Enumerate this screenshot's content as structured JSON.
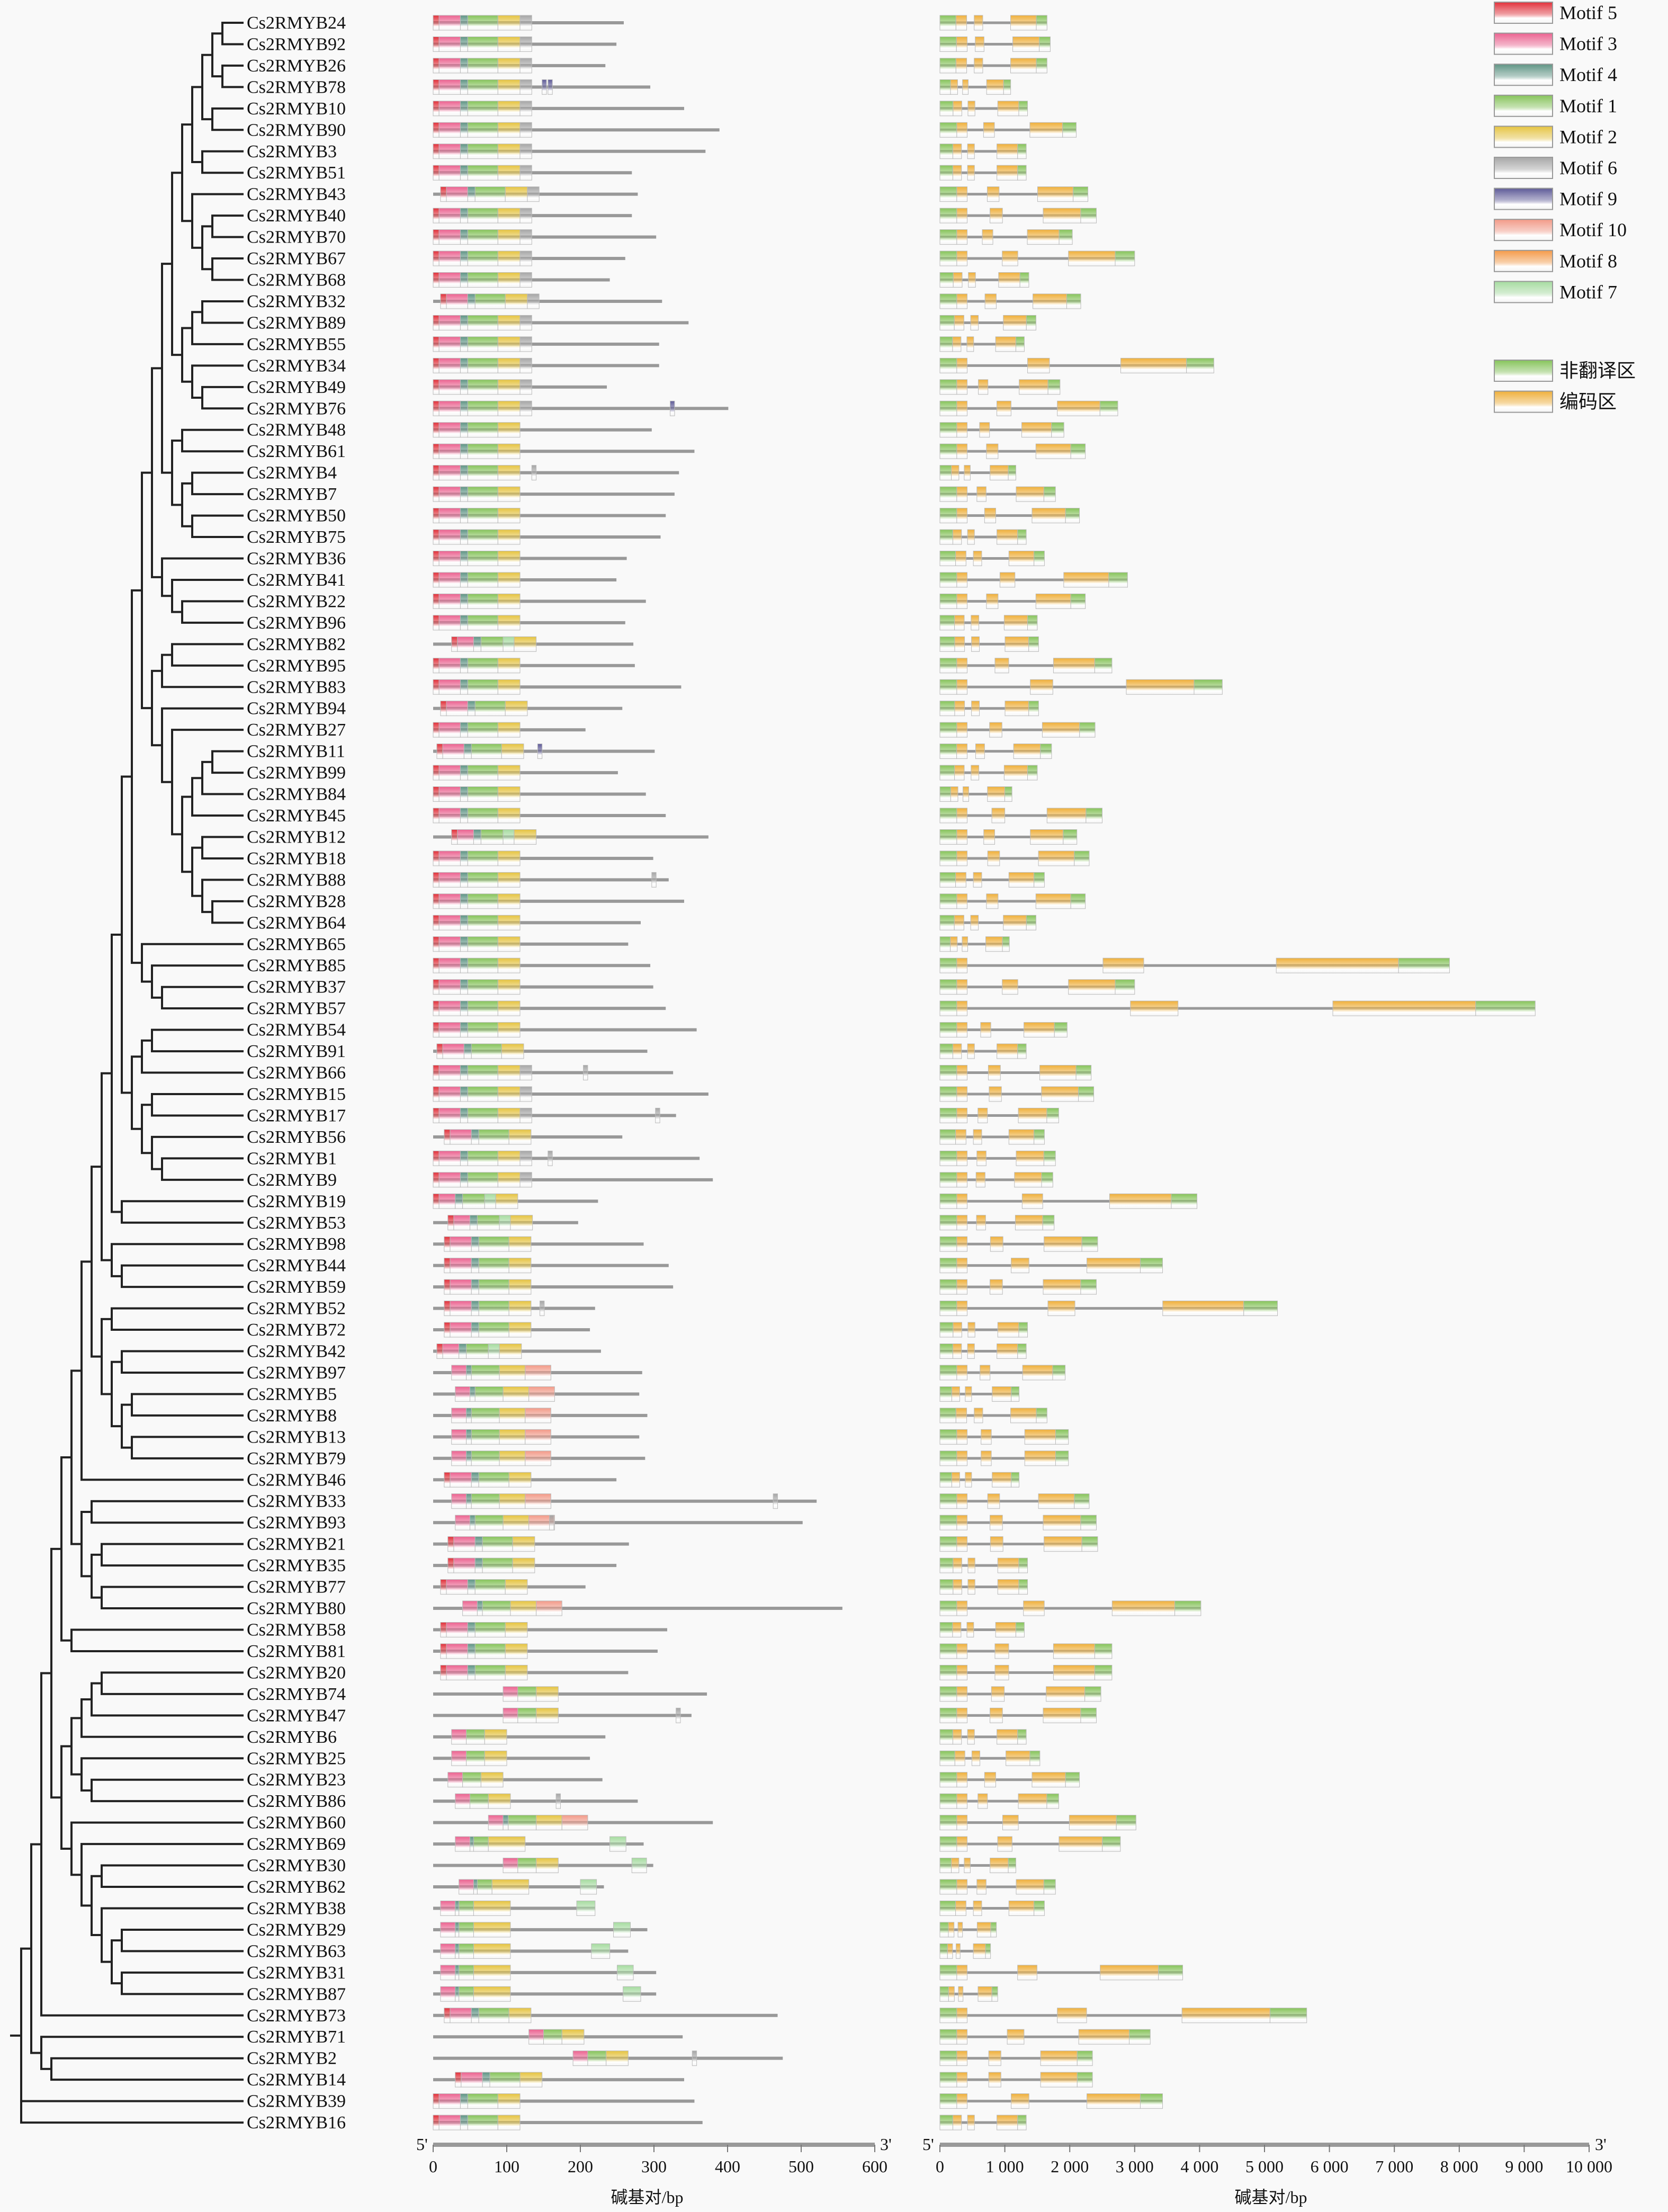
{
  "motif_colors": {
    "5": "#e2303a",
    "3": "#ec6290",
    "4": "#5f9585",
    "1": "#86c45a",
    "2": "#e6c440",
    "6": "#a6a6a6",
    "9": "#5e5a98",
    "10": "#f39a88",
    "8": "#f59a48",
    "7": "#a6dca0"
  },
  "legend": {
    "motifs": [
      {
        "id": "5",
        "label": "Motif 5"
      },
      {
        "id": "3",
        "label": "Motif 3"
      },
      {
        "id": "4",
        "label": "Motif 4"
      },
      {
        "id": "1",
        "label": "Motif 1"
      },
      {
        "id": "2",
        "label": "Motif 2"
      },
      {
        "id": "6",
        "label": "Motif 6"
      },
      {
        "id": "9",
        "label": "Motif 9"
      },
      {
        "id": "10",
        "label": "Motif 10"
      },
      {
        "id": "8",
        "label": "Motif 8"
      },
      {
        "id": "7",
        "label": "Motif 7"
      }
    ],
    "regions": [
      {
        "id": "utr",
        "label": "非翻译区",
        "color": "#86c45a"
      },
      {
        "id": "cds",
        "label": "编码区",
        "color": "#f0b03a"
      }
    ]
  },
  "motif_templates": {
    "T1": [
      [
        5,
        0,
        8
      ],
      [
        3,
        8,
        37
      ],
      [
        4,
        37,
        47
      ],
      [
        1,
        47,
        88
      ],
      [
        2,
        88,
        118
      ],
      [
        6,
        118,
        134
      ]
    ],
    "T2": [
      [
        5,
        0,
        8
      ],
      [
        3,
        8,
        37
      ],
      [
        4,
        37,
        47
      ],
      [
        1,
        47,
        88
      ],
      [
        2,
        88,
        118
      ]
    ],
    "T3": [
      [
        5,
        0,
        8
      ],
      [
        3,
        8,
        30
      ],
      [
        4,
        30,
        40
      ],
      [
        1,
        40,
        70
      ],
      [
        7,
        70,
        85
      ],
      [
        2,
        85,
        115
      ]
    ],
    "T4": [
      [
        3,
        25,
        45
      ],
      [
        4,
        45,
        52
      ],
      [
        1,
        52,
        90
      ],
      [
        2,
        90,
        125
      ],
      [
        10,
        125,
        160
      ]
    ],
    "T5": [
      [
        3,
        0,
        20
      ],
      [
        1,
        20,
        45
      ],
      [
        2,
        45,
        75
      ]
    ],
    "T6": [
      [
        3,
        0,
        20
      ],
      [
        4,
        20,
        25
      ],
      [
        1,
        25,
        45
      ],
      [
        2,
        45,
        95
      ]
    ]
  },
  "tree_newick": "((((((((((((((((((((((Cs2RMYB24,Cs2RMYB92),(Cs2RMYB26,Cs2RMYB78)),(Cs2RMYB10,Cs2RMYB90)),(Cs2RMYB3,Cs2RMYB51)),(Cs2RMYB43,((Cs2RMYB40,Cs2RMYB70),(Cs2RMYB67,Cs2RMYB68)))),(((Cs2RMYB32,Cs2RMYB89),Cs2RMYB55),(Cs2RMYB34,(Cs2RMYB49,Cs2RMYB76)))),((Cs2RMYB48,Cs2RMYB61),((Cs2RMYB4,Cs2RMYB7),(Cs2RMYB50,Cs2RMYB75)))),(Cs2RMYB36,(Cs2RMYB41,(Cs2RMYB22,Cs2RMYB96)))),(((Cs2RMYB82,Cs2RMYB95),Cs2RMYB83),(Cs2RMYB94,(Cs2RMYB27,((((Cs2RMYB11,Cs2RMYB99),Cs2RMYB84),Cs2RMYB45),((Cs2RMYB12,Cs2RMYB18),(Cs2RMYB88,(Cs2RMYB28,Cs2RMYB64)))))))),(Cs2RMYB65,(Cs2RMYB85,(Cs2RMYB37,Cs2RMYB57)))),(((Cs2RMYB54,Cs2RMYB91),Cs2RMYB66),((Cs2RMYB15,Cs2RMYB17),(Cs2RMYB56,(Cs2RMYB1,Cs2RMYB9))))),(Cs2RMYB19,Cs2RMYB53)),(Cs2RMYB98,(Cs2RMYB44,Cs2RMYB59))),((Cs2RMYB52,Cs2RMYB72),((Cs2RMYB42,Cs2RMYB97),((Cs2RMYB5,Cs2RMYB8),(Cs2RMYB13,Cs2RMYB79))))),Cs2RMYB46),((Cs2RMYB33,Cs2RMYB93),((Cs2RMYB21,Cs2RMYB35),(Cs2RMYB77,Cs2RMYB80)))),(Cs2RMYB58,Cs2RMYB81)),(((((Cs2RMYB20,Cs2RMYB74),Cs2RMYB47),Cs2RMYB6),(Cs2RMYB25,(Cs2RMYB23,Cs2RMYB86))),(Cs2RMYB60,(Cs2RMYB69,((Cs2RMYB30,Cs2RMYB62),(Cs2RMYB38,((Cs2RMYB29,Cs2RMYB63),(Cs2RMYB31,Cs2RMYB87)))))))),Cs2RMYB73),(Cs2RMYB71,(Cs2RMYB2,Cs2RMYB14))),Cs2RMYB39,Cs2RMYB16)",
  "genes": [
    {
      "name": "Cs2RMYB24",
      "aa": 259,
      "m": [
        "T1",
        0
      ],
      "x": [],
      "bp": 1650
    },
    {
      "name": "Cs2RMYB92",
      "aa": 249,
      "m": [
        "T1",
        0
      ],
      "x": [],
      "bp": 1700
    },
    {
      "name": "Cs2RMYB26",
      "aa": 234,
      "m": [
        "T1",
        0
      ],
      "x": [],
      "bp": 1650
    },
    {
      "name": "Cs2RMYB78",
      "aa": 295,
      "m": [
        "T1",
        0
      ],
      "x": [
        [
          9,
          148,
          154
        ],
        [
          9,
          156,
          162
        ]
      ],
      "bp": 1090
    },
    {
      "name": "Cs2RMYB10",
      "aa": 341,
      "m": [
        "T1",
        0
      ],
      "x": [],
      "bp": 1350
    },
    {
      "name": "Cs2RMYB90",
      "aa": 389,
      "m": [
        "T1",
        0
      ],
      "x": [],
      "bp": 2100
    },
    {
      "name": "Cs2RMYB3",
      "aa": 370,
      "m": [
        "T1",
        0
      ],
      "x": [],
      "bp": 1330
    },
    {
      "name": "Cs2RMYB51",
      "aa": 270,
      "m": [
        "T1",
        0
      ],
      "x": [],
      "bp": 1330
    },
    {
      "name": "Cs2RMYB43",
      "aa": 278,
      "m": [
        "T1",
        10
      ],
      "x": [],
      "bp": 2280
    },
    {
      "name": "Cs2RMYB40",
      "aa": 270,
      "m": [
        "T1",
        0
      ],
      "x": [],
      "bp": 2410
    },
    {
      "name": "Cs2RMYB70",
      "aa": 303,
      "m": [
        "T1",
        0
      ],
      "x": [],
      "bp": 2040
    },
    {
      "name": "Cs2RMYB67",
      "aa": 261,
      "m": [
        "T1",
        0
      ],
      "x": [],
      "bp": 3000
    },
    {
      "name": "Cs2RMYB68",
      "aa": 240,
      "m": [
        "T1",
        0
      ],
      "x": [],
      "bp": 1370
    },
    {
      "name": "Cs2RMYB32",
      "aa": 311,
      "m": [
        "T1",
        10
      ],
      "x": [],
      "bp": 2170
    },
    {
      "name": "Cs2RMYB89",
      "aa": 347,
      "m": [
        "T1",
        0
      ],
      "x": [],
      "bp": 1480
    },
    {
      "name": "Cs2RMYB55",
      "aa": 307,
      "m": [
        "T1",
        0
      ],
      "x": [],
      "bp": 1300
    },
    {
      "name": "Cs2RMYB34",
      "aa": 307,
      "m": [
        "T1",
        0
      ],
      "x": [],
      "bp": 4220
    },
    {
      "name": "Cs2RMYB49",
      "aa": 236,
      "m": [
        "T1",
        0
      ],
      "x": [],
      "bp": 1850
    },
    {
      "name": "Cs2RMYB76",
      "aa": 401,
      "m": [
        "T1",
        0
      ],
      "x": [
        [
          9,
          322,
          328
        ]
      ],
      "bp": 2740
    },
    {
      "name": "Cs2RMYB48",
      "aa": 297,
      "m": [
        "T2",
        0
      ],
      "x": [],
      "bp": 1910
    },
    {
      "name": "Cs2RMYB61",
      "aa": 355,
      "m": [
        "T2",
        0
      ],
      "x": [],
      "bp": 2240
    },
    {
      "name": "Cs2RMYB4",
      "aa": 334,
      "m": [
        "T2",
        0
      ],
      "x": [
        [
          6,
          134,
          140
        ]
      ],
      "bp": 1170
    },
    {
      "name": "Cs2RMYB7",
      "aa": 328,
      "m": [
        "T2",
        0
      ],
      "x": [],
      "bp": 1780
    },
    {
      "name": "Cs2RMYB50",
      "aa": 316,
      "m": [
        "T2",
        0
      ],
      "x": [],
      "bp": 2150
    },
    {
      "name": "Cs2RMYB75",
      "aa": 309,
      "m": [
        "T2",
        0
      ],
      "x": [],
      "bp": 1330
    },
    {
      "name": "Cs2RMYB36",
      "aa": 263,
      "m": [
        "T2",
        0
      ],
      "x": [],
      "bp": 1610
    },
    {
      "name": "Cs2RMYB41",
      "aa": 249,
      "m": [
        "T2",
        0
      ],
      "x": [],
      "bp": 2890
    },
    {
      "name": "Cs2RMYB22",
      "aa": 289,
      "m": [
        "T2",
        0
      ],
      "x": [],
      "bp": 2240
    },
    {
      "name": "Cs2RMYB96",
      "aa": 261,
      "m": [
        "T2",
        0
      ],
      "x": [],
      "bp": 1500
    },
    {
      "name": "Cs2RMYB82",
      "aa": 272,
      "m": [
        "T3",
        25
      ],
      "x": [],
      "bp": 1520
    },
    {
      "name": "Cs2RMYB95",
      "aa": 274,
      "m": [
        "T2",
        0
      ],
      "x": [],
      "bp": 2650
    },
    {
      "name": "Cs2RMYB83",
      "aa": 337,
      "m": [
        "T2",
        0
      ],
      "x": [],
      "bp": 4350
    },
    {
      "name": "Cs2RMYB94",
      "aa": 257,
      "m": [
        "T2",
        10
      ],
      "x": [],
      "bp": 1520
    },
    {
      "name": "Cs2RMYB27",
      "aa": 207,
      "m": [
        "T2",
        0
      ],
      "x": [],
      "bp": 2390
    },
    {
      "name": "Cs2RMYB11",
      "aa": 301,
      "m": [
        "T2",
        5
      ],
      "x": [
        [
          9,
          142,
          148
        ]
      ],
      "bp": 1720
    },
    {
      "name": "Cs2RMYB99",
      "aa": 251,
      "m": [
        "T2",
        0
      ],
      "x": [],
      "bp": 1500
    },
    {
      "name": "Cs2RMYB84",
      "aa": 289,
      "m": [
        "T2",
        0
      ],
      "x": [],
      "bp": 1110
    },
    {
      "name": "Cs2RMYB45",
      "aa": 316,
      "m": [
        "T2",
        0
      ],
      "x": [],
      "bp": 2500
    },
    {
      "name": "Cs2RMYB12",
      "aa": 374,
      "m": [
        "T3",
        25
      ],
      "x": [],
      "bp": 2110
    },
    {
      "name": "Cs2RMYB18",
      "aa": 299,
      "m": [
        "T2",
        0
      ],
      "x": [],
      "bp": 2300
    },
    {
      "name": "Cs2RMYB88",
      "aa": 320,
      "m": [
        "T2",
        0
      ],
      "x": [
        [
          6,
          297,
          303
        ]
      ],
      "bp": 1610
    },
    {
      "name": "Cs2RMYB28",
      "aa": 341,
      "m": [
        "T2",
        0
      ],
      "x": [],
      "bp": 2240
    },
    {
      "name": "Cs2RMYB64",
      "aa": 282,
      "m": [
        "T2",
        0
      ],
      "x": [],
      "bp": 1480
    },
    {
      "name": "Cs2RMYB65",
      "aa": 265,
      "m": [
        "T2",
        0
      ],
      "x": [],
      "bp": 1070
    },
    {
      "name": "Cs2RMYB85",
      "aa": 295,
      "m": [
        "T2",
        0
      ],
      "x": [],
      "bp": 7850
    },
    {
      "name": "Cs2RMYB37",
      "aa": 299,
      "m": [
        "T2",
        0
      ],
      "x": [],
      "bp": 3000
    },
    {
      "name": "Cs2RMYB57",
      "aa": 316,
      "m": [
        "T2",
        0
      ],
      "x": [],
      "bp": 9170
    },
    {
      "name": "Cs2RMYB54",
      "aa": 358,
      "m": [
        "T2",
        0
      ],
      "x": [],
      "bp": 1960
    },
    {
      "name": "Cs2RMYB91",
      "aa": 291,
      "m": [
        "T2",
        5
      ],
      "x": [],
      "bp": 1330
    },
    {
      "name": "Cs2RMYB66",
      "aa": 326,
      "m": [
        "T1",
        0
      ],
      "x": [
        [
          6,
          204,
          210
        ]
      ],
      "bp": 2330
    },
    {
      "name": "Cs2RMYB15",
      "aa": 374,
      "m": [
        "T1",
        0
      ],
      "x": [],
      "bp": 2370
    },
    {
      "name": "Cs2RMYB17",
      "aa": 330,
      "m": [
        "T1",
        0
      ],
      "x": [
        [
          6,
          302,
          308
        ]
      ],
      "bp": 1830
    },
    {
      "name": "Cs2RMYB56",
      "aa": 257,
      "m": [
        "T2",
        15
      ],
      "x": [],
      "bp": 1610
    },
    {
      "name": "Cs2RMYB1",
      "aa": 362,
      "m": [
        "T1",
        0
      ],
      "x": [
        [
          6,
          156,
          162
        ]
      ],
      "bp": 1780
    },
    {
      "name": "Cs2RMYB9",
      "aa": 380,
      "m": [
        "T1",
        0
      ],
      "x": [],
      "bp": 1740
    },
    {
      "name": "Cs2RMYB19",
      "aa": 224,
      "m": [
        "T3",
        0
      ],
      "x": [],
      "bp": 3960
    },
    {
      "name": "Cs2RMYB53",
      "aa": 197,
      "m": [
        "T3",
        20
      ],
      "x": [],
      "bp": 1760
    },
    {
      "name": "Cs2RMYB98",
      "aa": 286,
      "m": [
        "T2",
        15
      ],
      "x": [],
      "bp": 2430
    },
    {
      "name": "Cs2RMYB44",
      "aa": 320,
      "m": [
        "T2",
        15
      ],
      "x": [],
      "bp": 3430
    },
    {
      "name": "Cs2RMYB59",
      "aa": 326,
      "m": [
        "T2",
        15
      ],
      "x": [],
      "bp": 2410
    },
    {
      "name": "Cs2RMYB52",
      "aa": 220,
      "m": [
        "T2",
        15
      ],
      "x": [
        [
          6,
          145,
          151
        ]
      ],
      "bp": 5200
    },
    {
      "name": "Cs2RMYB72",
      "aa": 213,
      "m": [
        "T2",
        15
      ],
      "x": [],
      "bp": 1350
    },
    {
      "name": "Cs2RMYB42",
      "aa": 228,
      "m": [
        "T3",
        5
      ],
      "x": [],
      "bp": 1330
    },
    {
      "name": "Cs2RMYB97",
      "aa": 284,
      "m": [
        "T4",
        0
      ],
      "x": [],
      "bp": 1930
    },
    {
      "name": "Cs2RMYB5",
      "aa": 280,
      "m": [
        "T4",
        5
      ],
      "x": [],
      "bp": 1220
    },
    {
      "name": "Cs2RMYB8",
      "aa": 291,
      "m": [
        "T4",
        0
      ],
      "x": [],
      "bp": 1650
    },
    {
      "name": "Cs2RMYB13",
      "aa": 280,
      "m": [
        "T4",
        0
      ],
      "x": [],
      "bp": 1980
    },
    {
      "name": "Cs2RMYB79",
      "aa": 288,
      "m": [
        "T4",
        0
      ],
      "x": [],
      "bp": 1980
    },
    {
      "name": "Cs2RMYB46",
      "aa": 249,
      "m": [
        "T2",
        15
      ],
      "x": [],
      "bp": 1220
    },
    {
      "name": "Cs2RMYB33",
      "aa": 521,
      "m": [
        "T4",
        0
      ],
      "x": [
        [
          6,
          462,
          468
        ]
      ],
      "bp": 2300
    },
    {
      "name": "Cs2RMYB93",
      "aa": 502,
      "m": [
        "T4",
        5
      ],
      "x": [
        [
          6,
          158,
          164
        ]
      ],
      "bp": 2410
    },
    {
      "name": "Cs2RMYB21",
      "aa": 266,
      "m": [
        "T2",
        20
      ],
      "x": [],
      "bp": 2430
    },
    {
      "name": "Cs2RMYB35",
      "aa": 249,
      "m": [
        "T2",
        20
      ],
      "x": [],
      "bp": 1350
    },
    {
      "name": "Cs2RMYB77",
      "aa": 207,
      "m": [
        "T2",
        10
      ],
      "x": [],
      "bp": 1350
    },
    {
      "name": "Cs2RMYB80",
      "aa": 556,
      "m": [
        "T4",
        15
      ],
      "x": [],
      "bp": 4020
    },
    {
      "name": "Cs2RMYB58",
      "aa": 318,
      "m": [
        "T2",
        10
      ],
      "x": [],
      "bp": 1300
    },
    {
      "name": "Cs2RMYB81",
      "aa": 305,
      "m": [
        "T2",
        10
      ],
      "x": [],
      "bp": 2650
    },
    {
      "name": "Cs2RMYB20",
      "aa": 265,
      "m": [
        "T2",
        10
      ],
      "x": [],
      "bp": 2650
    },
    {
      "name": "Cs2RMYB74",
      "aa": 372,
      "m": [
        "T5",
        95
      ],
      "x": [],
      "bp": 2480
    },
    {
      "name": "Cs2RMYB47",
      "aa": 351,
      "m": [
        "T5",
        95
      ],
      "x": [
        [
          6,
          330,
          336
        ]
      ],
      "bp": 2410
    },
    {
      "name": "Cs2RMYB6",
      "aa": 234,
      "m": [
        "T5",
        25
      ],
      "x": [],
      "bp": 1330
    },
    {
      "name": "Cs2RMYB25",
      "aa": 213,
      "m": [
        "T5",
        25
      ],
      "x": [],
      "bp": 1540
    },
    {
      "name": "Cs2RMYB23",
      "aa": 230,
      "m": [
        "T5",
        20
      ],
      "x": [],
      "bp": 2150
    },
    {
      "name": "Cs2RMYB86",
      "aa": 278,
      "m": [
        "T5",
        30
      ],
      "x": [
        [
          6,
          167,
          173
        ]
      ],
      "bp": 1830
    },
    {
      "name": "Cs2RMYB60",
      "aa": 380,
      "m": [
        "T4",
        50
      ],
      "x": [],
      "bp": 3020
    },
    {
      "name": "Cs2RMYB69",
      "aa": 286,
      "m": [
        "T6",
        30
      ],
      "x": [
        [
          7,
          240,
          262
        ]
      ],
      "bp": 2780
    },
    {
      "name": "Cs2RMYB30",
      "aa": 299,
      "m": [
        "T5",
        95
      ],
      "x": [
        [
          7,
          270,
          290
        ]
      ],
      "bp": 1170
    },
    {
      "name": "Cs2RMYB62",
      "aa": 232,
      "m": [
        "T6",
        35
      ],
      "x": [
        [
          7,
          200,
          222
        ]
      ],
      "bp": 1780
    },
    {
      "name": "Cs2RMYB38",
      "aa": 220,
      "m": [
        "T6",
        10
      ],
      "x": [
        [
          7,
          195,
          220
        ]
      ],
      "bp": 1610
    },
    {
      "name": "Cs2RMYB29",
      "aa": 291,
      "m": [
        "T6",
        10
      ],
      "x": [
        [
          7,
          245,
          268
        ]
      ],
      "bp": 870
    },
    {
      "name": "Cs2RMYB63",
      "aa": 265,
      "m": [
        "T6",
        10
      ],
      "x": [
        [
          7,
          215,
          240
        ]
      ],
      "bp": 780
    },
    {
      "name": "Cs2RMYB31",
      "aa": 303,
      "m": [
        "T6",
        10
      ],
      "x": [
        [
          7,
          250,
          272
        ]
      ],
      "bp": 3740
    },
    {
      "name": "Cs2RMYB87",
      "aa": 303,
      "m": [
        "T6",
        10
      ],
      "x": [
        [
          7,
          258,
          282
        ]
      ],
      "bp": 890
    },
    {
      "name": "Cs2RMYB73",
      "aa": 468,
      "m": [
        "T2",
        15
      ],
      "x": [],
      "bp": 5650
    },
    {
      "name": "Cs2RMYB71",
      "aa": 339,
      "m": [
        "T5",
        130
      ],
      "x": [],
      "bp": 3240
    },
    {
      "name": "Cs2RMYB2",
      "aa": 475,
      "m": [
        "T5",
        190
      ],
      "x": [
        [
          6,
          352,
          358
        ]
      ],
      "bp": 2350
    },
    {
      "name": "Cs2RMYB14",
      "aa": 341,
      "m": [
        "T2",
        30
      ],
      "x": [],
      "bp": 2350
    },
    {
      "name": "Cs2RMYB39",
      "aa": 355,
      "m": [
        "T2",
        0
      ],
      "x": [],
      "bp": 3430
    },
    {
      "name": "Cs2RMYB16",
      "aa": 366,
      "m": [
        "T2",
        0
      ],
      "x": [],
      "bp": 1330
    }
  ],
  "protein_axis": {
    "five": "5'",
    "three": "3'",
    "ticks": [
      "0",
      "100",
      "200",
      "300",
      "400",
      "500",
      "600"
    ],
    "max": 600,
    "title": "碱基对/bp"
  },
  "gene_axis": {
    "five": "5'",
    "three": "3'",
    "ticks": [
      "0",
      "1 000",
      "2 000",
      "3 000",
      "4 000",
      "5 000",
      "6 000",
      "7 000",
      "8 000",
      "9 000",
      "10 000"
    ],
    "max": 10000,
    "title": "碱基对/bp"
  }
}
